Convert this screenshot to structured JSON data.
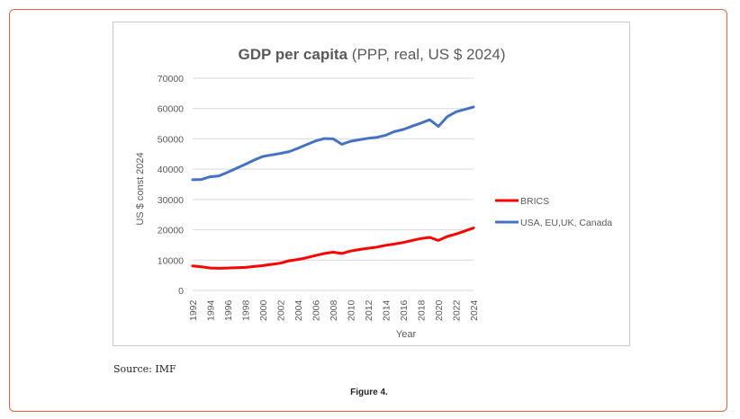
{
  "chart_data": {
    "type": "line",
    "title_bold": "GDP per capita",
    "title_rest": " (PPP, real, US $ 2024)",
    "xlabel": "Year",
    "ylabel": "US $ const 2024",
    "ylim": [
      0,
      70000
    ],
    "yticks": [
      0,
      10000,
      20000,
      30000,
      40000,
      50000,
      60000,
      70000
    ],
    "ytick_labels": [
      "0",
      "10000",
      "20000",
      "30000",
      "40000",
      "50000",
      "60000",
      "70000"
    ],
    "xlim": [
      1992,
      2024
    ],
    "xticks": [
      "1992",
      "1994",
      "1996",
      "1998",
      "2000",
      "2002",
      "2004",
      "2006",
      "2008",
      "2010",
      "2012",
      "2014",
      "2016",
      "2018",
      "2020",
      "2022",
      "2024"
    ],
    "grid": true,
    "legend_position": "right",
    "x": [
      1992,
      1993,
      1994,
      1995,
      1996,
      1997,
      1998,
      1999,
      2000,
      2001,
      2002,
      2003,
      2004,
      2005,
      2006,
      2007,
      2008,
      2009,
      2010,
      2011,
      2012,
      2013,
      2014,
      2015,
      2016,
      2017,
      2018,
      2019,
      2020,
      2021,
      2022,
      2023,
      2024
    ],
    "series": [
      {
        "name": "BRICS",
        "color": "#ff0000",
        "values": [
          8100,
          7800,
          7400,
          7300,
          7400,
          7500,
          7600,
          7900,
          8200,
          8600,
          9000,
          9800,
          10200,
          10800,
          11500,
          12200,
          12600,
          12200,
          13000,
          13500,
          13900,
          14300,
          14900,
          15300,
          15800,
          16500,
          17100,
          17500,
          16500,
          17800,
          18600,
          19600,
          20600
        ]
      },
      {
        "name": "USA, EU,UK, Canada",
        "color": "#4472c4",
        "values": [
          36500,
          36600,
          37500,
          37800,
          39000,
          40300,
          41600,
          43000,
          44200,
          44700,
          45200,
          45800,
          46900,
          48100,
          49300,
          50100,
          50000,
          48200,
          49200,
          49700,
          50200,
          50500,
          51200,
          52400,
          53100,
          54200,
          55200,
          56300,
          54100,
          57300,
          58900,
          59700,
          60500
        ]
      }
    ]
  },
  "source_text": "Source: IMF",
  "figure_caption": "Figure 4."
}
